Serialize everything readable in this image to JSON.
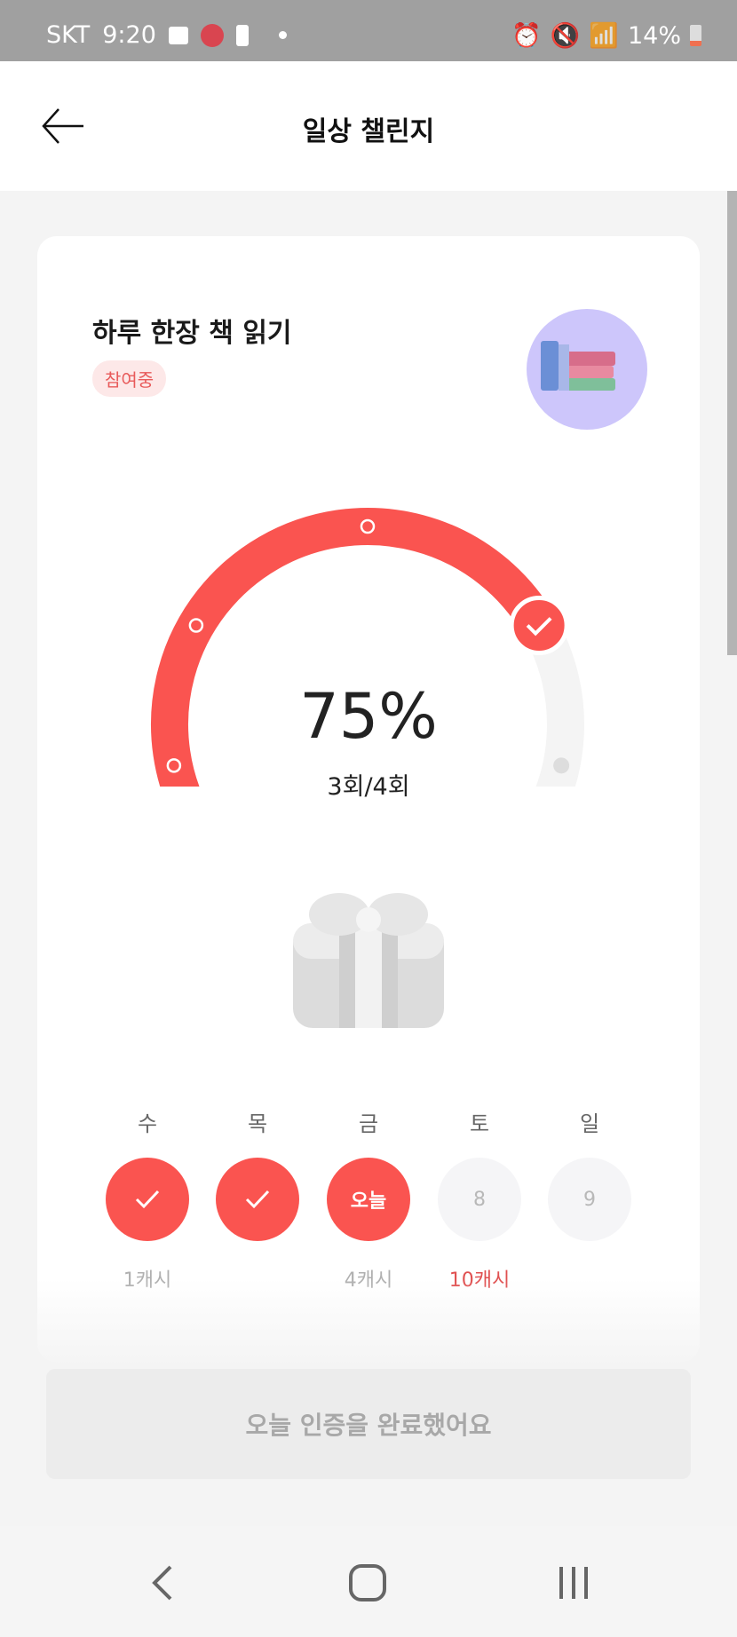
{
  "status_bar": {
    "carrier": "SKT",
    "time": "9:20",
    "battery": "14%"
  },
  "header": {
    "title": "일상 챌린지",
    "back_icon": "arrow-left-icon"
  },
  "challenge": {
    "title": "하루 한장 책 읽기",
    "badge": "참여중",
    "image_icon": "books-icon"
  },
  "progress": {
    "percent_label": "75%",
    "count_label": "3회/4회",
    "value": 0.75,
    "done": 3,
    "total": 4
  },
  "colors": {
    "accent": "#fa5450",
    "track": "#f4f4f4"
  },
  "days": [
    {
      "label": "수",
      "state": "done",
      "cash": "1캐시"
    },
    {
      "label": "목",
      "state": "done",
      "cash": ""
    },
    {
      "label": "금",
      "state": "today",
      "text": "오늘",
      "cash": "4캐시"
    },
    {
      "label": "토",
      "state": "future",
      "text": "8",
      "cash": "10캐시",
      "highlight": true
    },
    {
      "label": "일",
      "state": "future",
      "text": "9",
      "cash": ""
    }
  ],
  "button": {
    "label": "오늘 인증을 완료했어요"
  }
}
